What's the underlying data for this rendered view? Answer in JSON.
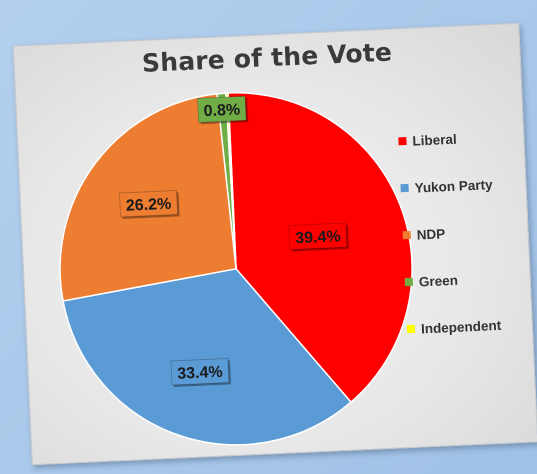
{
  "chart_data": {
    "type": "pie",
    "title": "Share of the Vote",
    "categories": [
      "Liberal",
      "Yukon Party",
      "NDP",
      "Green",
      "Independent"
    ],
    "values": [
      39.4,
      33.4,
      26.2,
      0.8,
      0.2
    ],
    "data_labels": [
      "39.4%",
      "33.4%",
      "26.2%",
      "0.8%",
      ""
    ],
    "colors": [
      "#ff0000",
      "#5b9bd5",
      "#ed7d31",
      "#70ad47",
      "#ffff00"
    ],
    "legend_position": "right",
    "start_angle_deg": 0,
    "direction": "clockwise"
  }
}
